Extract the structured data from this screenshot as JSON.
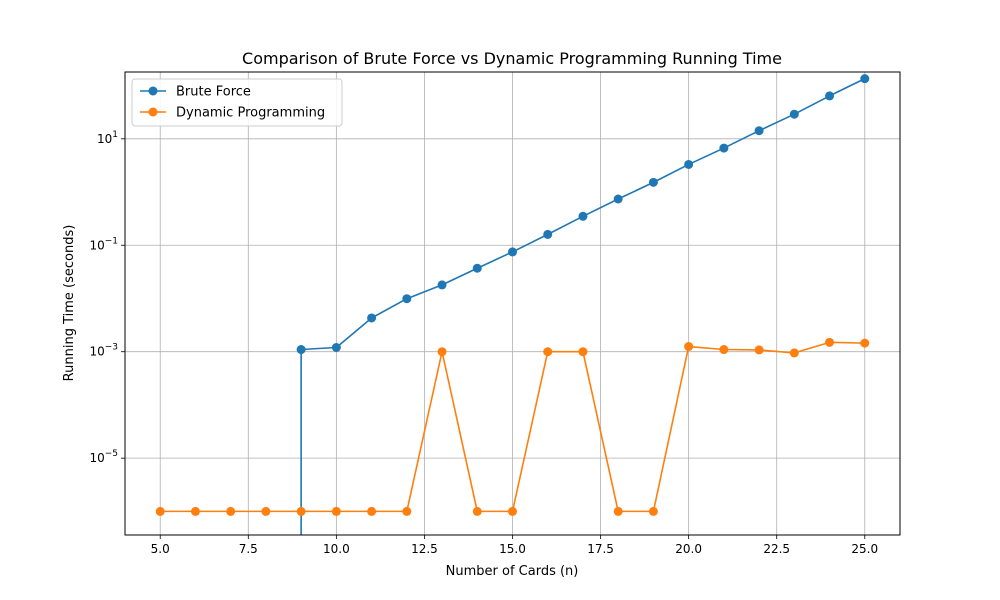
{
  "chart_data": {
    "type": "line",
    "title": "Comparison of Brute Force vs Dynamic Programming Running Time",
    "xlabel": "Number of Cards (n)",
    "ylabel": "Running Time (seconds)",
    "x_scale": "linear",
    "y_scale": "log",
    "xlim": [
      4.0,
      26.0
    ],
    "ylim": [
      3.6e-07,
      180
    ],
    "x_ticks": [
      5.0,
      7.5,
      10.0,
      12.5,
      15.0,
      17.5,
      20.0,
      22.5,
      25.0
    ],
    "x_tick_labels": [
      "5.0",
      "7.5",
      "10.0",
      "12.5",
      "15.0",
      "17.5",
      "20.0",
      "22.5",
      "25.0"
    ],
    "y_ticks": [
      {
        "value": 1e-05,
        "base": "10",
        "exp": "−5"
      },
      {
        "value": 0.001,
        "base": "10",
        "exp": "−3"
      },
      {
        "value": 0.1,
        "base": "10",
        "exp": "−1"
      },
      {
        "value": 10,
        "base": "10",
        "exp": "1"
      }
    ],
    "grid": true,
    "legend_position": "top-left",
    "series": [
      {
        "name": "Brute Force",
        "color": "#1f77b4",
        "marker": "circle",
        "x": [
          9,
          10,
          11,
          12,
          13,
          14,
          15,
          16,
          17,
          18,
          19,
          20,
          21,
          22,
          23,
          24,
          25
        ],
        "y": [
          0.0011,
          0.0012,
          0.0043,
          0.0099,
          0.018,
          0.037,
          0.075,
          0.16,
          0.35,
          0.74,
          1.52,
          3.3,
          6.7,
          14.2,
          29,
          64,
          135
        ],
        "drop_to_zero_at": 9
      },
      {
        "name": "Dynamic Programming",
        "color": "#ff7f0e",
        "marker": "circle",
        "x": [
          5,
          6,
          7,
          8,
          9,
          10,
          11,
          12,
          13,
          14,
          15,
          16,
          17,
          18,
          19,
          20,
          21,
          22,
          23,
          24,
          25
        ],
        "y": [
          1e-06,
          1e-06,
          1e-06,
          1e-06,
          1e-06,
          1e-06,
          1e-06,
          1e-06,
          0.001,
          1e-06,
          1e-06,
          0.001,
          0.001,
          1e-06,
          1e-06,
          0.00125,
          0.0011,
          0.00108,
          0.00095,
          0.0015,
          0.00145
        ]
      }
    ]
  }
}
